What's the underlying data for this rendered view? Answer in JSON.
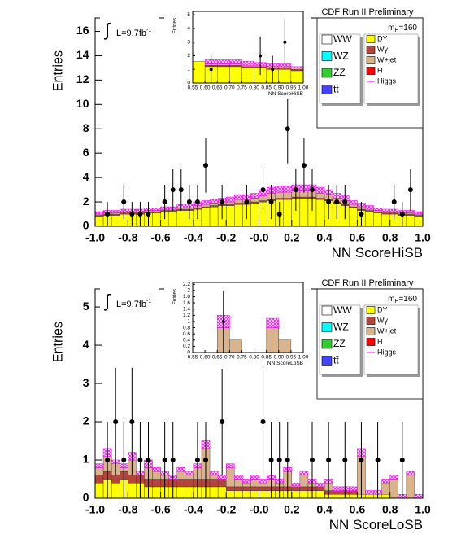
{
  "chart_data": [
    {
      "type": "histogram",
      "title": "CDF Run II Preliminary",
      "x_label": "NN ScoreHiSB",
      "y_label": "Entries",
      "lumi": {
        "symbol": "∫",
        "text": "L=9.7fb",
        "superscript": "-1"
      },
      "mass": {
        "symbol": "m",
        "subscript": "H",
        "text": "=160"
      },
      "bins": [
        -1,
        -0.95,
        -0.9,
        -0.85,
        -0.8,
        -0.75,
        -0.7,
        -0.65,
        -0.6,
        -0.55,
        -0.5,
        -0.45,
        -0.4,
        -0.35,
        -0.3,
        -0.25,
        -0.2,
        -0.15,
        -0.1,
        -0.05,
        0,
        0.05,
        0.1,
        0.15,
        0.2,
        0.25,
        0.3,
        0.35,
        0.4,
        0.45,
        0.5,
        0.55,
        0.6,
        0.65,
        0.7,
        0.75,
        0.8,
        0.85,
        0.9,
        0.95,
        1
      ],
      "series": [
        {
          "name": "DY",
          "color": "#ffff00",
          "values": [
            0.8,
            0.9,
            0.9,
            1.0,
            1.0,
            1.0,
            1.1,
            1.1,
            1.2,
            1.2,
            1.3,
            1.3,
            1.4,
            1.5,
            1.6,
            1.7,
            1.7,
            1.8,
            1.8,
            1.9,
            2.0,
            2.1,
            2.2,
            2.2,
            2.3,
            2.3,
            2.3,
            2.2,
            2.1,
            1.9,
            1.7,
            1.5,
            1.3,
            1.2,
            1.1,
            1.0,
            1.0,
            0.9,
            0.9,
            0.8
          ]
        },
        {
          "name": "Wγ",
          "color": "#b5453c",
          "values": [
            0.1,
            0.1,
            0.1,
            0.1,
            0.1,
            0.1,
            0.1,
            0.1,
            0.1,
            0.1,
            0.1,
            0.1,
            0.1,
            0.1,
            0.1,
            0.1,
            0.1,
            0.1,
            0.1,
            0.1,
            0.1,
            0.1,
            0.1,
            0.1,
            0.1,
            0.1,
            0.1,
            0.1,
            0.1,
            0.1,
            0.1,
            0.1,
            0.1,
            0.1,
            0.1,
            0.1,
            0.1,
            0.1,
            0.1,
            0.1
          ]
        },
        {
          "name": "W+jet",
          "color": "#d9b38c",
          "values": [
            0.1,
            0.1,
            0.1,
            0.1,
            0.1,
            0.1,
            0.1,
            0.1,
            0.1,
            0.1,
            0.1,
            0.1,
            0.2,
            0.2,
            0.2,
            0.2,
            0.2,
            0.3,
            0.3,
            0.3,
            0.4,
            0.5,
            0.5,
            0.5,
            0.5,
            0.5,
            0.5,
            0.4,
            0.4,
            0.3,
            0.3,
            0.2,
            0.2,
            0.1,
            0.1,
            0.1,
            0.1,
            0.1,
            0.1,
            0.1
          ]
        },
        {
          "name": "Higgs",
          "color": "#ff00ff",
          "hatch": true,
          "values": [
            0.2,
            0.2,
            0.2,
            0.2,
            0.2,
            0.2,
            0.2,
            0.2,
            0.2,
            0.2,
            0.3,
            0.3,
            0.3,
            0.3,
            0.3,
            0.3,
            0.4,
            0.4,
            0.4,
            0.4,
            0.5,
            0.5,
            0.5,
            0.5,
            0.5,
            0.5,
            0.5,
            0.5,
            0.4,
            0.4,
            0.4,
            0.3,
            0.3,
            0.3,
            0.2,
            0.2,
            0.2,
            0.2,
            0.2,
            0.2
          ]
        }
      ],
      "legend_only": [
        {
          "name": "WW",
          "color": "#ffffff"
        },
        {
          "name": "WZ",
          "color": "#00ffff"
        },
        {
          "name": "ZZ",
          "color": "#33cc33"
        },
        {
          "name": "tt̄",
          "color": "#4444ff"
        },
        {
          "name": "H",
          "color": "#ff0000"
        }
      ],
      "data": {
        "values": [
          null,
          1,
          null,
          2,
          1,
          1,
          1,
          null,
          2,
          3,
          3,
          2,
          2,
          5,
          null,
          2,
          null,
          null,
          2,
          null,
          3,
          2,
          1,
          8,
          3,
          5,
          3,
          null,
          2,
          2,
          2,
          null,
          1,
          null,
          null,
          null,
          2,
          1,
          3,
          null
        ],
        "errors": [
          null,
          1,
          null,
          1.41,
          1,
          1,
          1,
          null,
          1.41,
          1.73,
          1.73,
          1.41,
          1.41,
          2.24,
          null,
          1.41,
          null,
          null,
          1.41,
          null,
          1.73,
          1.41,
          1,
          2.83,
          1.73,
          2.24,
          1.73,
          null,
          1.41,
          1.41,
          1.41,
          null,
          1,
          null,
          null,
          null,
          1.41,
          1,
          1.73,
          null
        ]
      },
      "xlim": [
        -1,
        1
      ],
      "ylim": [
        0,
        17.1
      ],
      "xticks": [
        {
          "value": -1,
          "label": "-1.0"
        },
        -0.8,
        -0.6,
        -0.4,
        -0.2,
        {
          "value": 0,
          "label": "-0.0"
        },
        0.2,
        0.4,
        0.6,
        0.8,
        {
          "value": 1,
          "label": "1.0"
        }
      ],
      "yticks": [
        0,
        2,
        4,
        6,
        8,
        10,
        12,
        14,
        16
      ],
      "inset": {
        "type": "histogram",
        "x_label": "NN ScoreHiSB",
        "y_label": "Entries",
        "bins": [
          0.55,
          0.6,
          0.65,
          0.7,
          0.75,
          0.8,
          0.85,
          0.9,
          0.95,
          1.0
        ],
        "series": [
          {
            "color": "#ffff00",
            "values": [
              1.6,
              1.2,
              1.2,
              1.2,
              1.1,
              1.1,
              1.0,
              1.0,
              0.9
            ]
          },
          {
            "color": "#b5453c",
            "values": [
              0,
              0.1,
              0.1,
              0.1,
              0.1,
              0.1,
              0.1,
              0.1,
              0.1
            ]
          },
          {
            "color": "#d9b38c",
            "values": [
              0,
              0.1,
              0.1,
              0.1,
              0.1,
              0.1,
              0.1,
              0.1,
              0.1
            ]
          },
          {
            "color": "#ff00ff",
            "hatch": true,
            "values": [
              0,
              0.3,
              0.3,
              0.3,
              0.3,
              0.2,
              0.2,
              0.2,
              0.1
            ]
          }
        ],
        "data": {
          "values": [
            null,
            1,
            null,
            null,
            null,
            2,
            1,
            3,
            null
          ],
          "errors": [
            null,
            1,
            null,
            null,
            null,
            1.41,
            1,
            1.73,
            null
          ]
        },
        "xlim": [
          0.55,
          1.0
        ],
        "ylim": [
          0,
          5.25
        ],
        "xticks": [
          0.55,
          {
            "value": 0.6,
            "label": "0.60"
          },
          0.65,
          {
            "value": 0.7,
            "label": "0.70"
          },
          0.75,
          {
            "value": 0.8,
            "label": "0.80"
          },
          0.85,
          {
            "value": 0.9,
            "label": "0.90"
          },
          0.95,
          {
            "value": 1.0,
            "label": "1.00"
          }
        ],
        "yticks": [
          0,
          1,
          2,
          3,
          4,
          5
        ]
      }
    },
    {
      "type": "histogram",
      "title": "CDF Run II Preliminary",
      "x_label": "NN ScoreLoSB",
      "y_label": "Entries",
      "lumi": {
        "symbol": "∫",
        "text": "L=9.7fb",
        "superscript": "-1"
      },
      "mass": {
        "symbol": "m",
        "subscript": "H",
        "text": "=160"
      },
      "bins": [
        -1,
        -0.95,
        -0.9,
        -0.85,
        -0.8,
        -0.75,
        -0.7,
        -0.65,
        -0.6,
        -0.55,
        -0.5,
        -0.45,
        -0.4,
        -0.35,
        -0.3,
        -0.25,
        -0.2,
        -0.15,
        -0.1,
        -0.05,
        0,
        0.05,
        0.1,
        0.15,
        0.2,
        0.25,
        0.3,
        0.35,
        0.4,
        0.45,
        0.5,
        0.55,
        0.6,
        0.65,
        0.7,
        0.75,
        0.8,
        0.85,
        0.9,
        0.95,
        1
      ],
      "series": [
        {
          "name": "DY",
          "color": "#ffff00",
          "values": [
            0.4,
            0.5,
            0.4,
            0.5,
            0.4,
            0.4,
            0.3,
            0.3,
            0.3,
            0.3,
            0.3,
            0.3,
            0.3,
            0.3,
            0.3,
            0.3,
            0.2,
            0.2,
            0.2,
            0.2,
            0.2,
            0.2,
            0.2,
            0.2,
            0.2,
            0.2,
            0.2,
            0.2,
            0.1,
            0.1,
            0.1,
            0.1,
            0.1,
            0.1,
            0.1,
            0.1,
            0,
            0,
            0,
            0
          ]
        },
        {
          "name": "Wγ",
          "color": "#b5453c",
          "values": [
            0.2,
            0.2,
            0.2,
            0.2,
            0.2,
            0.2,
            0.2,
            0.2,
            0.2,
            0.2,
            0.2,
            0.2,
            0.2,
            0.2,
            0.2,
            0.2,
            0.1,
            0.1,
            0.1,
            0.1,
            0.1,
            0.1,
            0.1,
            0.1,
            0.1,
            0.1,
            0.1,
            0.1,
            0.1,
            0.1,
            0.1,
            0.1,
            0,
            0,
            0,
            0,
            0,
            0,
            0,
            0
          ]
        },
        {
          "name": "W+jet",
          "color": "#d9b38c",
          "values": [
            0.2,
            0.4,
            0.3,
            0.1,
            0.4,
            0,
            0.3,
            0.2,
            0.1,
            0,
            0.2,
            0.1,
            0.3,
            0.8,
            0.1,
            0,
            0.5,
            0.2,
            0.1,
            0.2,
            0.1,
            0.2,
            0.1,
            0.4,
            0,
            0.3,
            0.1,
            0,
            0.2,
            0,
            0,
            0,
            1.0,
            0,
            0,
            0.3,
            0.5,
            0,
            0.6,
            0
          ]
        },
        {
          "name": "Higgs",
          "color": "#ff00ff",
          "hatch": true,
          "values": [
            0.1,
            0.2,
            0.1,
            0.1,
            0.2,
            0.1,
            0.2,
            0.1,
            0.1,
            0.1,
            0.1,
            0.1,
            0.1,
            0.2,
            0.1,
            0.1,
            0.1,
            0.1,
            0.1,
            0.1,
            0.1,
            0.1,
            0.1,
            0.1,
            0.1,
            0.1,
            0.1,
            0.1,
            0.1,
            0.1,
            0.1,
            0.1,
            0.2,
            0.1,
            0.1,
            0.1,
            0.1,
            0.1,
            0.1,
            0.1
          ]
        }
      ],
      "legend_only": [
        {
          "name": "WW",
          "color": "#ffffff"
        },
        {
          "name": "WZ",
          "color": "#00ffff"
        },
        {
          "name": "ZZ",
          "color": "#33cc33"
        },
        {
          "name": "tt̄",
          "color": "#4444ff"
        },
        {
          "name": "H",
          "color": "#ff0000"
        }
      ],
      "data": {
        "values": [
          null,
          1,
          2,
          1,
          2,
          1,
          1,
          null,
          1,
          1,
          null,
          null,
          1,
          1,
          null,
          2,
          null,
          null,
          null,
          null,
          2,
          1,
          1,
          1,
          null,
          null,
          1,
          null,
          1,
          null,
          1,
          null,
          1,
          null,
          1,
          null,
          null,
          1,
          null,
          null
        ],
        "errors": [
          null,
          1,
          1.41,
          1,
          1.41,
          1,
          1,
          null,
          1,
          1,
          null,
          null,
          1,
          1,
          null,
          1.41,
          null,
          null,
          null,
          null,
          1.41,
          1,
          1,
          1,
          null,
          null,
          1,
          null,
          1,
          null,
          1,
          null,
          1,
          null,
          1,
          null,
          null,
          1,
          null,
          null
        ]
      },
      "xlim": [
        -1,
        1
      ],
      "ylim": [
        0,
        5.47
      ],
      "xticks": [
        {
          "value": -1,
          "label": "-1.0"
        },
        -0.8,
        -0.6,
        -0.4,
        -0.2,
        {
          "value": 0,
          "label": "-0.0"
        },
        0.2,
        0.4,
        0.6,
        0.8,
        {
          "value": 1,
          "label": "1.0"
        }
      ],
      "yticks": [
        0,
        1,
        2,
        3,
        4,
        5
      ],
      "inset": {
        "type": "histogram",
        "x_label": "NN ScoreLoSB",
        "y_label": "Entries",
        "bins": [
          0.55,
          0.6,
          0.65,
          0.7,
          0.75,
          0.8,
          0.85,
          0.9,
          0.95,
          1.0
        ],
        "series": [
          {
            "color": "#ffff00",
            "values": [
              0,
              0,
              0,
              0,
              0,
              0,
              0,
              0,
              0
            ]
          },
          {
            "color": "#b5453c",
            "values": [
              0,
              0,
              0,
              0,
              0,
              0,
              0,
              0,
              0
            ]
          },
          {
            "color": "#d9b38c",
            "values": [
              0,
              0,
              0.8,
              0.4,
              0,
              0,
              0.8,
              0.4,
              0
            ]
          },
          {
            "color": "#ff00ff",
            "hatch": true,
            "values": [
              0,
              0,
              0.4,
              0,
              0,
              0,
              0.3,
              0,
              0
            ]
          }
        ],
        "data": {
          "values": [
            null,
            null,
            1,
            null,
            null,
            null,
            null,
            null,
            null
          ],
          "errors": [
            null,
            null,
            1,
            null,
            null,
            null,
            null,
            null,
            null
          ]
        },
        "xlim": [
          0.55,
          1.0
        ],
        "ylim": [
          0,
          2.26
        ],
        "xticks": [
          0.55,
          {
            "value": 0.6,
            "label": "0.60"
          },
          0.65,
          {
            "value": 0.7,
            "label": "0.70"
          },
          0.75,
          {
            "value": 0.8,
            "label": "0.80"
          },
          0.85,
          {
            "value": 0.9,
            "label": "0.90"
          },
          0.95,
          {
            "value": 1.0,
            "label": "1.00"
          }
        ],
        "yticks": [
          0,
          0.2,
          0.4,
          0.6,
          0.8,
          1,
          1.2,
          1.4,
          1.6,
          1.8,
          2,
          2.2
        ]
      }
    }
  ]
}
